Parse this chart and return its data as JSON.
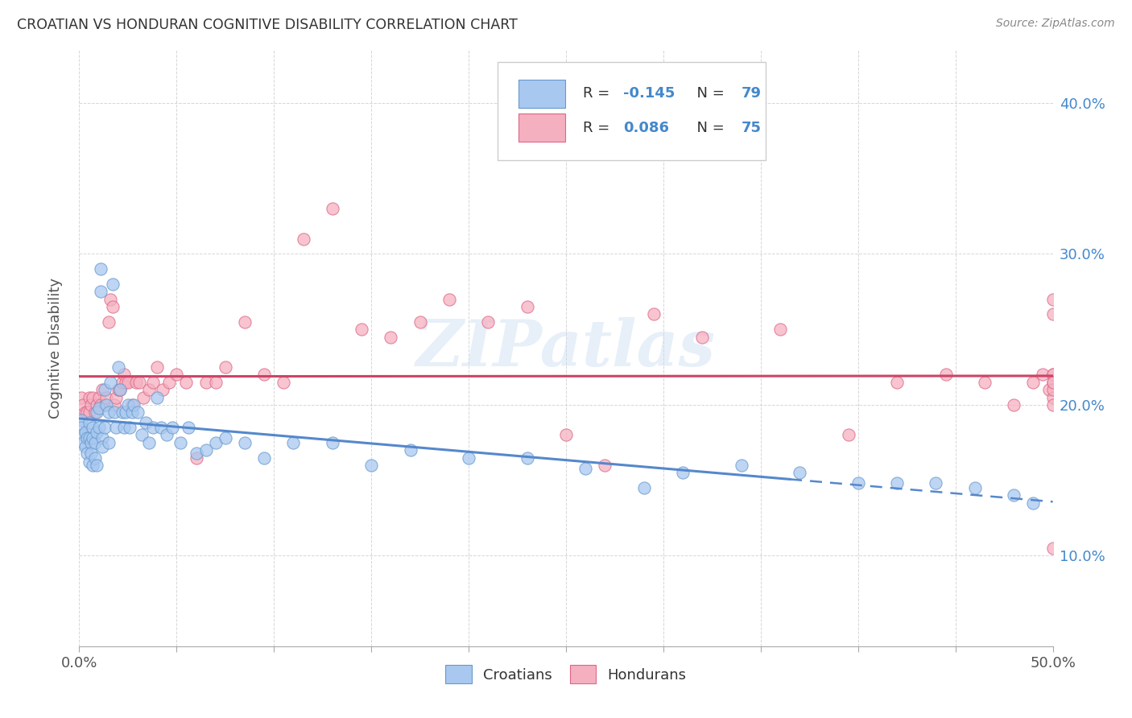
{
  "title": "CROATIAN VS HONDURAN COGNITIVE DISABILITY CORRELATION CHART",
  "source": "Source: ZipAtlas.com",
  "ylabel": "Cognitive Disability",
  "watermark": "ZIPatlas",
  "croatian_r": -0.145,
  "croatian_n": 79,
  "honduran_r": 0.086,
  "honduran_n": 75,
  "croatian_color": "#A8C8F0",
  "honduran_color": "#F5B0C0",
  "croatian_edge_color": "#6699CC",
  "honduran_edge_color": "#DD6688",
  "croatian_line_color": "#5588CC",
  "honduran_line_color": "#CC4466",
  "background_color": "#FFFFFF",
  "grid_color": "#CCCCCC",
  "xlim": [
    0.0,
    0.5
  ],
  "ylim": [
    0.04,
    0.435
  ],
  "x_tick_positions": [
    0.0,
    0.05,
    0.1,
    0.15,
    0.2,
    0.25,
    0.3,
    0.35,
    0.4,
    0.45,
    0.5
  ],
  "y_ticks": [
    0.1,
    0.2,
    0.3,
    0.4
  ],
  "croatian_x": [
    0.001,
    0.001,
    0.002,
    0.002,
    0.003,
    0.003,
    0.004,
    0.004,
    0.005,
    0.005,
    0.005,
    0.006,
    0.006,
    0.007,
    0.007,
    0.007,
    0.008,
    0.008,
    0.009,
    0.009,
    0.009,
    0.01,
    0.01,
    0.011,
    0.011,
    0.012,
    0.012,
    0.013,
    0.013,
    0.014,
    0.015,
    0.015,
    0.016,
    0.017,
    0.018,
    0.019,
    0.02,
    0.021,
    0.022,
    0.023,
    0.024,
    0.025,
    0.026,
    0.027,
    0.028,
    0.03,
    0.032,
    0.034,
    0.036,
    0.038,
    0.04,
    0.042,
    0.045,
    0.048,
    0.052,
    0.056,
    0.06,
    0.065,
    0.07,
    0.075,
    0.085,
    0.095,
    0.11,
    0.13,
    0.15,
    0.17,
    0.2,
    0.23,
    0.26,
    0.29,
    0.31,
    0.34,
    0.37,
    0.4,
    0.42,
    0.44,
    0.46,
    0.48,
    0.49
  ],
  "croatian_y": [
    0.19,
    0.185,
    0.18,
    0.175,
    0.182,
    0.172,
    0.178,
    0.168,
    0.188,
    0.178,
    0.162,
    0.175,
    0.168,
    0.185,
    0.178,
    0.16,
    0.175,
    0.165,
    0.195,
    0.182,
    0.16,
    0.198,
    0.185,
    0.29,
    0.275,
    0.178,
    0.172,
    0.21,
    0.185,
    0.2,
    0.195,
    0.175,
    0.215,
    0.28,
    0.195,
    0.185,
    0.225,
    0.21,
    0.195,
    0.185,
    0.195,
    0.2,
    0.185,
    0.195,
    0.2,
    0.195,
    0.18,
    0.188,
    0.175,
    0.185,
    0.205,
    0.185,
    0.18,
    0.185,
    0.175,
    0.185,
    0.168,
    0.17,
    0.175,
    0.178,
    0.175,
    0.165,
    0.175,
    0.175,
    0.16,
    0.17,
    0.165,
    0.165,
    0.158,
    0.145,
    0.155,
    0.16,
    0.155,
    0.148,
    0.148,
    0.148,
    0.145,
    0.14,
    0.135
  ],
  "honduran_x": [
    0.001,
    0.002,
    0.003,
    0.004,
    0.005,
    0.005,
    0.006,
    0.007,
    0.008,
    0.009,
    0.01,
    0.011,
    0.012,
    0.013,
    0.014,
    0.015,
    0.016,
    0.017,
    0.018,
    0.019,
    0.02,
    0.021,
    0.022,
    0.023,
    0.024,
    0.025,
    0.027,
    0.029,
    0.031,
    0.033,
    0.036,
    0.038,
    0.04,
    0.043,
    0.046,
    0.05,
    0.055,
    0.06,
    0.065,
    0.07,
    0.075,
    0.085,
    0.095,
    0.105,
    0.115,
    0.13,
    0.145,
    0.16,
    0.175,
    0.19,
    0.21,
    0.23,
    0.25,
    0.27,
    0.295,
    0.32,
    0.36,
    0.395,
    0.42,
    0.445,
    0.465,
    0.48,
    0.49,
    0.495,
    0.498,
    0.5,
    0.5,
    0.5,
    0.5,
    0.5,
    0.5,
    0.5,
    0.5,
    0.5,
    0.5
  ],
  "honduran_y": [
    0.205,
    0.2,
    0.195,
    0.195,
    0.205,
    0.195,
    0.2,
    0.205,
    0.195,
    0.2,
    0.205,
    0.2,
    0.21,
    0.2,
    0.205,
    0.255,
    0.27,
    0.265,
    0.2,
    0.205,
    0.21,
    0.21,
    0.215,
    0.22,
    0.215,
    0.215,
    0.2,
    0.215,
    0.215,
    0.205,
    0.21,
    0.215,
    0.225,
    0.21,
    0.215,
    0.22,
    0.215,
    0.165,
    0.215,
    0.215,
    0.225,
    0.255,
    0.22,
    0.215,
    0.31,
    0.33,
    0.25,
    0.245,
    0.255,
    0.27,
    0.255,
    0.265,
    0.18,
    0.16,
    0.26,
    0.245,
    0.25,
    0.18,
    0.215,
    0.22,
    0.215,
    0.2,
    0.215,
    0.22,
    0.21,
    0.105,
    0.22,
    0.22,
    0.205,
    0.215,
    0.21,
    0.2,
    0.215,
    0.27,
    0.26
  ]
}
